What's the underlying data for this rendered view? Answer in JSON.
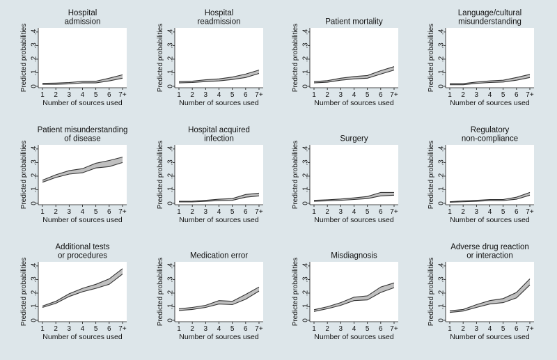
{
  "figure": {
    "background": "#dde6ea",
    "plot_background": "#ffffff",
    "band_color": "#c0c0c0",
    "line_color": "#333333"
  },
  "chart_data": [
    {
      "type": "area",
      "title": [
        "Hospital",
        "admission"
      ],
      "xlabel": "Number of sources used",
      "ylabel": "Predicted probabilities",
      "x": [
        "1",
        "2",
        "3",
        "4",
        "5",
        "6",
        "7+"
      ],
      "yticks": [
        "0",
        ".1",
        ".2",
        ".3",
        ".4"
      ],
      "ylim": [
        0,
        0.42
      ],
      "series": [
        {
          "lower": [
            0.015,
            0.015,
            0.018,
            0.025,
            0.025,
            0.04,
            0.06
          ]
        },
        {
          "upper": [
            0.022,
            0.024,
            0.028,
            0.037,
            0.038,
            0.06,
            0.085
          ]
        }
      ]
    },
    {
      "type": "area",
      "title": [
        "Hospital",
        "readmission"
      ],
      "xlabel": "Number of sources used",
      "ylabel": "Predicted probabilities",
      "x": [
        "1",
        "2",
        "3",
        "4",
        "5",
        "6",
        "7+"
      ],
      "yticks": [
        "0",
        ".1",
        ".2",
        ".3",
        ".4"
      ],
      "ylim": [
        0,
        0.42
      ],
      "series": [
        {
          "lower": [
            0.025,
            0.028,
            0.035,
            0.04,
            0.05,
            0.065,
            0.095
          ]
        },
        {
          "upper": [
            0.035,
            0.038,
            0.048,
            0.055,
            0.068,
            0.09,
            0.12
          ]
        }
      ]
    },
    {
      "type": "area",
      "title": [
        "Patient mortality"
      ],
      "xlabel": "Number of sources used",
      "ylabel": "Predicted probabilities",
      "x": [
        "1",
        "2",
        "3",
        "4",
        "5",
        "6",
        "7+"
      ],
      "yticks": [
        "0",
        ".1",
        ".2",
        ".3",
        ".4"
      ],
      "ylim": [
        0,
        0.42
      ],
      "series": [
        {
          "lower": [
            0.025,
            0.03,
            0.045,
            0.055,
            0.06,
            0.09,
            0.12
          ]
        },
        {
          "upper": [
            0.035,
            0.042,
            0.06,
            0.072,
            0.08,
            0.115,
            0.145
          ]
        }
      ]
    },
    {
      "type": "area",
      "title": [
        "Language/cultural",
        "misunderstanding"
      ],
      "xlabel": "Number of sources used",
      "ylabel": "Predicted probabilities",
      "x": [
        "1",
        "2",
        "3",
        "4",
        "5",
        "6",
        "7+"
      ],
      "yticks": [
        "0",
        ".1",
        ".2",
        ".3",
        ".4"
      ],
      "ylim": [
        0,
        0.42
      ],
      "series": [
        {
          "lower": [
            0.012,
            0.012,
            0.022,
            0.028,
            0.032,
            0.045,
            0.065
          ]
        },
        {
          "upper": [
            0.02,
            0.02,
            0.032,
            0.04,
            0.045,
            0.065,
            0.088
          ]
        }
      ]
    },
    {
      "type": "area",
      "title": [
        "Patient misunderstanding",
        "of disease"
      ],
      "xlabel": "Number of sources used",
      "ylabel": "Predicted probabilities",
      "x": [
        "1",
        "2",
        "3",
        "4",
        "5",
        "6",
        "7+"
      ],
      "yticks": [
        "0",
        ".1",
        ".2",
        ".3",
        ".4"
      ],
      "ylim": [
        0,
        0.42
      ],
      "series": [
        {
          "lower": [
            0.155,
            0.19,
            0.215,
            0.225,
            0.26,
            0.27,
            0.3
          ]
        },
        {
          "upper": [
            0.17,
            0.21,
            0.24,
            0.255,
            0.295,
            0.315,
            0.34
          ]
        }
      ]
    },
    {
      "type": "area",
      "title": [
        "Hospital acquired",
        "infection"
      ],
      "xlabel": "Number of sources used",
      "ylabel": "Predicted probabilities",
      "x": [
        "1",
        "2",
        "3",
        "4",
        "5",
        "6",
        "7+"
      ],
      "yticks": [
        "0",
        ".1",
        ".2",
        ".3",
        ".4"
      ],
      "ylim": [
        0,
        0.42
      ],
      "series": [
        {
          "lower": [
            0.01,
            0.01,
            0.015,
            0.02,
            0.022,
            0.045,
            0.055
          ]
        },
        {
          "upper": [
            0.015,
            0.016,
            0.022,
            0.03,
            0.035,
            0.065,
            0.075
          ]
        }
      ]
    },
    {
      "type": "area",
      "title": [
        "Surgery"
      ],
      "xlabel": "Number of sources used",
      "ylabel": "Predicted probabilities",
      "x": [
        "1",
        "2",
        "3",
        "4",
        "5",
        "6",
        "7+"
      ],
      "yticks": [
        "0",
        ".1",
        ".2",
        ".3",
        ".4"
      ],
      "ylim": [
        0,
        0.42
      ],
      "series": [
        {
          "lower": [
            0.015,
            0.018,
            0.022,
            0.028,
            0.035,
            0.055,
            0.06
          ]
        },
        {
          "upper": [
            0.022,
            0.026,
            0.032,
            0.04,
            0.05,
            0.08,
            0.08
          ]
        }
      ]
    },
    {
      "type": "area",
      "title": [
        "Regulatory",
        "non-compliance"
      ],
      "xlabel": "Number of sources used",
      "ylabel": "Predicted probabilities",
      "x": [
        "1",
        "2",
        "3",
        "4",
        "5",
        "6",
        "7+"
      ],
      "yticks": [
        "0",
        ".1",
        ".2",
        ".3",
        ".4"
      ],
      "ylim": [
        0,
        0.42
      ],
      "series": [
        {
          "lower": [
            0.008,
            0.012,
            0.015,
            0.02,
            0.02,
            0.03,
            0.06
          ]
        },
        {
          "upper": [
            0.012,
            0.018,
            0.022,
            0.028,
            0.028,
            0.045,
            0.08
          ]
        }
      ]
    },
    {
      "type": "area",
      "title": [
        "Additional tests",
        "or procedures"
      ],
      "xlabel": "Number of sources used",
      "ylabel": "Predicted probabilities",
      "x": [
        "1",
        "2",
        "3",
        "4",
        "5",
        "6",
        "7+"
      ],
      "yticks": [
        "0",
        ".1",
        ".2",
        ".3",
        ".4"
      ],
      "ylim": [
        0,
        0.42
      ],
      "series": [
        {
          "lower": [
            0.095,
            0.125,
            0.175,
            0.21,
            0.235,
            0.265,
            0.34
          ]
        },
        {
          "upper": [
            0.105,
            0.14,
            0.195,
            0.235,
            0.265,
            0.305,
            0.38
          ]
        }
      ]
    },
    {
      "type": "area",
      "title": [
        "Medication error"
      ],
      "xlabel": "Number of sources used",
      "ylabel": "Predicted probabilities",
      "x": [
        "1",
        "2",
        "3",
        "4",
        "5",
        "6",
        "7+"
      ],
      "yticks": [
        "0",
        ".1",
        ".2",
        ".3",
        ".4"
      ],
      "ylim": [
        0,
        0.42
      ],
      "series": [
        {
          "lower": [
            0.072,
            0.08,
            0.095,
            0.12,
            0.115,
            0.155,
            0.215
          ]
        },
        {
          "upper": [
            0.085,
            0.095,
            0.11,
            0.145,
            0.14,
            0.19,
            0.245
          ]
        }
      ]
    },
    {
      "type": "area",
      "title": [
        "Misdiagnosis"
      ],
      "xlabel": "Number of sources used",
      "ylabel": "Predicted probabilities",
      "x": [
        "1",
        "2",
        "3",
        "4",
        "5",
        "6",
        "7+"
      ],
      "yticks": [
        "0",
        ".1",
        ".2",
        ".3",
        ".4"
      ],
      "ylim": [
        0,
        0.42
      ],
      "series": [
        {
          "lower": [
            0.065,
            0.085,
            0.11,
            0.145,
            0.15,
            0.205,
            0.24
          ]
        },
        {
          "upper": [
            0.078,
            0.1,
            0.13,
            0.17,
            0.18,
            0.245,
            0.275
          ]
        }
      ]
    },
    {
      "type": "area",
      "title": [
        "Adverse drug reaction",
        "or interaction"
      ],
      "xlabel": "Number of sources used",
      "ylabel": "Predicted probabilities",
      "x": [
        "1",
        "2",
        "3",
        "4",
        "5",
        "6",
        "7+"
      ],
      "yticks": [
        "0",
        ".1",
        ".2",
        ".3",
        ".4"
      ],
      "ylim": [
        0,
        0.42
      ],
      "series": [
        {
          "lower": [
            0.058,
            0.068,
            0.095,
            0.12,
            0.13,
            0.165,
            0.26
          ]
        },
        {
          "upper": [
            0.07,
            0.08,
            0.115,
            0.145,
            0.16,
            0.205,
            0.305
          ]
        }
      ]
    }
  ]
}
